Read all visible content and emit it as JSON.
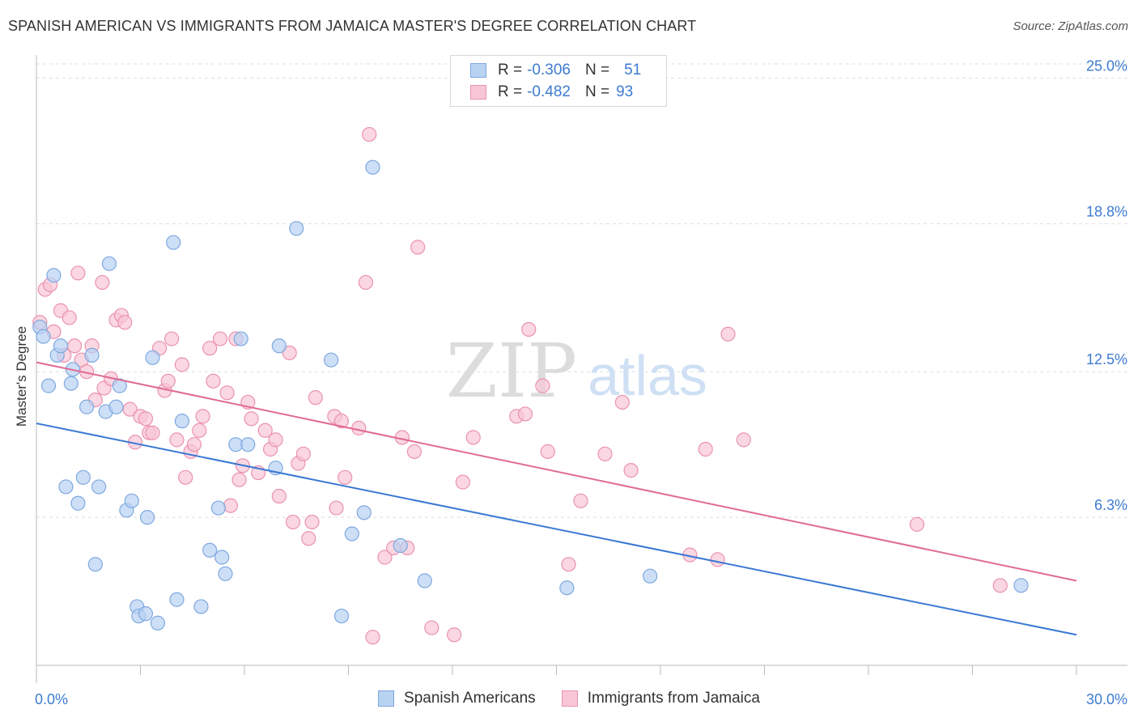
{
  "header": {
    "title": "SPANISH AMERICAN VS IMMIGRANTS FROM JAMAICA MASTER'S DEGREE CORRELATION CHART",
    "source": "Source: ZipAtlas.com"
  },
  "watermark": {
    "part1": "ZIP",
    "part2": "atlas"
  },
  "legend": {
    "rows": [
      {
        "r_label": "R =",
        "r_value": "-0.306",
        "n_label": "N =",
        "n_value": "51",
        "fill": "#b8d2f2",
        "stroke": "#7ea8e0"
      },
      {
        "r_label": "R =",
        "r_value": "-0.482",
        "n_label": "N =",
        "n_value": "93",
        "fill": "#f8c6d6",
        "stroke": "#ea92b0"
      }
    ]
  },
  "bottom_legend": {
    "items": [
      {
        "label": "Spanish Americans",
        "fill": "#b8d2f2",
        "stroke": "#7ea8e0"
      },
      {
        "label": "Immigrants from Jamaica",
        "fill": "#f8c6d6",
        "stroke": "#ea92b0"
      }
    ]
  },
  "chart_data": {
    "type": "scatter",
    "title": "SPANISH AMERICAN VS IMMIGRANTS FROM JAMAICA MASTER'S DEGREE CORRELATION CHART",
    "ylabel": "Master's Degree",
    "xlabel": "",
    "xlim": [
      0,
      30
    ],
    "ylim": [
      0,
      25.6
    ],
    "x_tick_labels": [
      {
        "value": 0,
        "label": "0.0%"
      },
      {
        "value": 30,
        "label": "30.0%"
      }
    ],
    "y_tick_labels": [
      {
        "value": 6.3,
        "label": "6.3%"
      },
      {
        "value": 12.5,
        "label": "12.5%"
      },
      {
        "value": 18.8,
        "label": "18.8%"
      },
      {
        "value": 25.0,
        "label": "25.0%"
      }
    ],
    "grid": true,
    "colors": {
      "blue": "#3a78d4",
      "pink": "#e06a96",
      "blue_fill": "#b8d2f2",
      "pink_fill": "#f8c6d6",
      "tick_label": "#3d7bd1"
    },
    "series": [
      {
        "name": "Spanish Americans",
        "color": "#3a78d4",
        "trend": {
          "x": [
            0,
            30
          ],
          "y": [
            10.3,
            1.3
          ]
        },
        "points": [
          {
            "x": 0.1,
            "y": 14.4
          },
          {
            "x": 0.2,
            "y": 14.0
          },
          {
            "x": 0.35,
            "y": 11.9
          },
          {
            "x": 0.5,
            "y": 16.6
          },
          {
            "x": 0.6,
            "y": 13.2
          },
          {
            "x": 0.7,
            "y": 13.6
          },
          {
            "x": 1.0,
            "y": 12.0
          },
          {
            "x": 1.05,
            "y": 12.6
          },
          {
            "x": 0.85,
            "y": 7.6
          },
          {
            "x": 1.2,
            "y": 6.9
          },
          {
            "x": 1.35,
            "y": 8.0
          },
          {
            "x": 1.45,
            "y": 11.0
          },
          {
            "x": 1.6,
            "y": 13.2
          },
          {
            "x": 1.7,
            "y": 4.3
          },
          {
            "x": 1.8,
            "y": 7.6
          },
          {
            "x": 2.0,
            "y": 10.8
          },
          {
            "x": 2.1,
            "y": 17.1
          },
          {
            "x": 2.3,
            "y": 11.0
          },
          {
            "x": 2.4,
            "y": 11.9
          },
          {
            "x": 2.6,
            "y": 6.6
          },
          {
            "x": 2.75,
            "y": 7.0
          },
          {
            "x": 2.9,
            "y": 2.5
          },
          {
            "x": 2.95,
            "y": 2.1
          },
          {
            "x": 3.15,
            "y": 2.2
          },
          {
            "x": 3.2,
            "y": 6.3
          },
          {
            "x": 3.35,
            "y": 13.1
          },
          {
            "x": 3.5,
            "y": 1.8
          },
          {
            "x": 3.95,
            "y": 18.0
          },
          {
            "x": 4.05,
            "y": 2.8
          },
          {
            "x": 4.2,
            "y": 10.4
          },
          {
            "x": 4.75,
            "y": 2.5
          },
          {
            "x": 5.0,
            "y": 4.9
          },
          {
            "x": 5.25,
            "y": 6.7
          },
          {
            "x": 5.35,
            "y": 4.6
          },
          {
            "x": 5.45,
            "y": 3.9
          },
          {
            "x": 5.75,
            "y": 9.4
          },
          {
            "x": 5.9,
            "y": 13.9
          },
          {
            "x": 6.1,
            "y": 9.4
          },
          {
            "x": 6.9,
            "y": 8.4
          },
          {
            "x": 7.0,
            "y": 13.6
          },
          {
            "x": 7.5,
            "y": 18.6
          },
          {
            "x": 8.5,
            "y": 13.0
          },
          {
            "x": 8.8,
            "y": 2.1
          },
          {
            "x": 9.1,
            "y": 5.6
          },
          {
            "x": 9.45,
            "y": 6.5
          },
          {
            "x": 9.7,
            "y": 21.2
          },
          {
            "x": 10.5,
            "y": 5.1
          },
          {
            "x": 11.2,
            "y": 3.6
          },
          {
            "x": 15.3,
            "y": 3.3
          },
          {
            "x": 17.7,
            "y": 3.8
          },
          {
            "x": 28.4,
            "y": 3.4
          }
        ]
      },
      {
        "name": "Immigrants from Jamaica",
        "color": "#e06a96",
        "trend": {
          "x": [
            0,
            30
          ],
          "y": [
            12.9,
            3.6
          ]
        },
        "points": [
          {
            "x": 0.1,
            "y": 14.6
          },
          {
            "x": 0.25,
            "y": 16.0
          },
          {
            "x": 0.4,
            "y": 16.2
          },
          {
            "x": 0.5,
            "y": 14.2
          },
          {
            "x": 0.7,
            "y": 15.1
          },
          {
            "x": 0.8,
            "y": 13.2
          },
          {
            "x": 0.95,
            "y": 14.8
          },
          {
            "x": 1.1,
            "y": 13.6
          },
          {
            "x": 1.2,
            "y": 16.7
          },
          {
            "x": 1.3,
            "y": 13.0
          },
          {
            "x": 1.45,
            "y": 12.5
          },
          {
            "x": 1.6,
            "y": 13.6
          },
          {
            "x": 1.7,
            "y": 11.3
          },
          {
            "x": 1.9,
            "y": 16.3
          },
          {
            "x": 1.95,
            "y": 11.8
          },
          {
            "x": 2.15,
            "y": 12.2
          },
          {
            "x": 2.3,
            "y": 14.7
          },
          {
            "x": 2.45,
            "y": 14.9
          },
          {
            "x": 2.55,
            "y": 14.6
          },
          {
            "x": 2.7,
            "y": 10.9
          },
          {
            "x": 2.85,
            "y": 9.5
          },
          {
            "x": 3.0,
            "y": 10.6
          },
          {
            "x": 3.15,
            "y": 10.5
          },
          {
            "x": 3.25,
            "y": 9.9
          },
          {
            "x": 3.35,
            "y": 9.9
          },
          {
            "x": 3.55,
            "y": 13.5
          },
          {
            "x": 3.7,
            "y": 11.7
          },
          {
            "x": 3.8,
            "y": 12.1
          },
          {
            "x": 3.9,
            "y": 13.9
          },
          {
            "x": 4.05,
            "y": 9.6
          },
          {
            "x": 4.2,
            "y": 12.8
          },
          {
            "x": 4.3,
            "y": 8.0
          },
          {
            "x": 4.45,
            "y": 9.1
          },
          {
            "x": 4.55,
            "y": 9.4
          },
          {
            "x": 4.7,
            "y": 10.0
          },
          {
            "x": 4.8,
            "y": 10.6
          },
          {
            "x": 5.0,
            "y": 13.5
          },
          {
            "x": 5.1,
            "y": 12.1
          },
          {
            "x": 5.3,
            "y": 13.9
          },
          {
            "x": 5.5,
            "y": 11.6
          },
          {
            "x": 5.6,
            "y": 6.8
          },
          {
            "x": 5.75,
            "y": 13.9
          },
          {
            "x": 5.85,
            "y": 7.9
          },
          {
            "x": 5.95,
            "y": 8.5
          },
          {
            "x": 6.1,
            "y": 11.2
          },
          {
            "x": 6.2,
            "y": 10.5
          },
          {
            "x": 6.4,
            "y": 8.2
          },
          {
            "x": 6.6,
            "y": 10.0
          },
          {
            "x": 6.75,
            "y": 9.2
          },
          {
            "x": 6.9,
            "y": 9.6
          },
          {
            "x": 7.0,
            "y": 7.2
          },
          {
            "x": 7.3,
            "y": 13.3
          },
          {
            "x": 7.4,
            "y": 6.1
          },
          {
            "x": 7.55,
            "y": 8.6
          },
          {
            "x": 7.7,
            "y": 9.0
          },
          {
            "x": 7.85,
            "y": 5.4
          },
          {
            "x": 7.95,
            "y": 6.1
          },
          {
            "x": 8.05,
            "y": 11.4
          },
          {
            "x": 8.6,
            "y": 10.6
          },
          {
            "x": 8.8,
            "y": 10.4
          },
          {
            "x": 8.65,
            "y": 6.7
          },
          {
            "x": 8.9,
            "y": 8.0
          },
          {
            "x": 9.3,
            "y": 10.1
          },
          {
            "x": 9.5,
            "y": 16.3
          },
          {
            "x": 9.6,
            "y": 22.6
          },
          {
            "x": 9.7,
            "y": 1.2
          },
          {
            "x": 10.05,
            "y": 4.6
          },
          {
            "x": 10.3,
            "y": 5.0
          },
          {
            "x": 10.55,
            "y": 9.7
          },
          {
            "x": 10.7,
            "y": 5.0
          },
          {
            "x": 10.9,
            "y": 9.1
          },
          {
            "x": 11.0,
            "y": 17.8
          },
          {
            "x": 11.4,
            "y": 1.6
          },
          {
            "x": 12.05,
            "y": 1.3
          },
          {
            "x": 12.3,
            "y": 7.8
          },
          {
            "x": 12.6,
            "y": 9.7
          },
          {
            "x": 13.85,
            "y": 10.6
          },
          {
            "x": 14.1,
            "y": 10.7
          },
          {
            "x": 14.2,
            "y": 14.3
          },
          {
            "x": 14.6,
            "y": 11.9
          },
          {
            "x": 14.75,
            "y": 9.1
          },
          {
            "x": 15.35,
            "y": 4.3
          },
          {
            "x": 15.7,
            "y": 7.0
          },
          {
            "x": 16.4,
            "y": 9.0
          },
          {
            "x": 16.9,
            "y": 11.2
          },
          {
            "x": 17.15,
            "y": 8.3
          },
          {
            "x": 18.85,
            "y": 4.7
          },
          {
            "x": 19.3,
            "y": 9.2
          },
          {
            "x": 19.65,
            "y": 4.5
          },
          {
            "x": 19.95,
            "y": 14.1
          },
          {
            "x": 20.4,
            "y": 9.6
          },
          {
            "x": 25.4,
            "y": 6.0
          },
          {
            "x": 27.8,
            "y": 3.4
          }
        ]
      }
    ]
  }
}
